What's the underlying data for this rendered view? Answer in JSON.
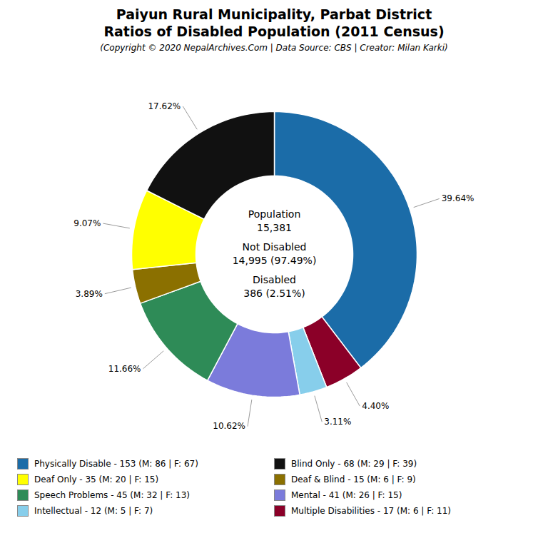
{
  "chart_data": {
    "type": "pie",
    "title": "Paiyun Rural Municipality, Parbat District\nRatios of Disabled Population (2011 Census)",
    "subtitle": "(Copyright © 2020 NepalArchives.Com | Data Source: CBS | Creator: Milan Karki)",
    "categories": [
      "Physically Disable - 153 (M: 86 | F: 67)",
      "Multiple Disabilities - 17 (M: 6 | F: 11)",
      "Intellectual - 12 (M: 5 | F: 7)",
      "Mental - 41 (M: 26 | F: 15)",
      "Speech Problems - 45 (M: 32 | F: 13)",
      "Deaf & Blind - 15 (M: 6 | F: 9)",
      "Deaf Only - 35 (M: 20 | F: 15)",
      "Blind Only - 68 (M: 29 | F: 39)"
    ],
    "values": [
      39.64,
      4.4,
      3.11,
      10.62,
      11.66,
      3.89,
      9.07,
      17.62
    ],
    "value_labels": [
      "39.64%",
      "4.40%",
      "3.11%",
      "10.62%",
      "11.66%",
      "3.89%",
      "9.07%",
      "17.62%"
    ],
    "data_labels": true,
    "colors": [
      "#1B6CA8",
      "#8B0028",
      "#87CEEB",
      "#7B7BDB",
      "#2E8B57",
      "#8B7000",
      "#FFFF00",
      "#111111"
    ],
    "legend": "bottom",
    "legend_entries": [
      "Physically Disable - 153 (M: 86 | F: 67)",
      "Deaf Only - 35 (M: 20 | F: 15)",
      "Speech Problems - 45 (M: 32 | F: 13)",
      "Intellectual - 12 (M: 5 | F: 7)",
      "Blind Only - 68 (M: 29 | F: 39)",
      "Deaf & Blind - 15 (M: 6 | F: 9)",
      "Mental - 41 (M: 26 | F: 15)",
      "Multiple Disabilities - 17 (M: 6 | F: 11)"
    ],
    "annotations": [
      "Population",
      "15,381",
      "Not Disabled",
      "14,995 (97.49%)",
      "Disabled",
      "386 (2.51%)"
    ]
  }
}
